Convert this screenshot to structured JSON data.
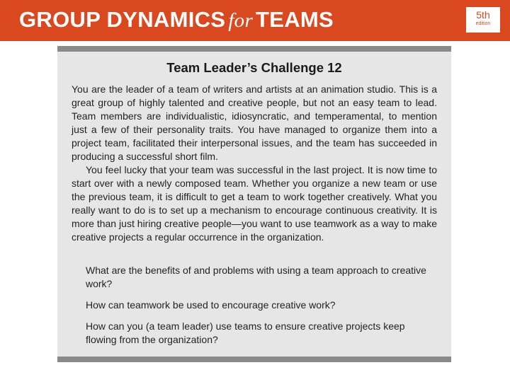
{
  "header": {
    "title_left": "GROUP DYNAMICS",
    "title_for": "for",
    "title_right": "TEAMS",
    "edition_number": "5th",
    "edition_word": "edition",
    "accent_color": "#d9481f"
  },
  "card": {
    "title": "Team Leader’s Challenge 12",
    "paragraphs": [
      "You are the leader of a team of writers and artists at an animation studio. This is a great group of highly talented and creative people, but not an easy team to lead. Team members are individualistic, idiosyncratic, and temperamental, to mention just a few of their personality traits. You have managed to orga­nize them into a project team, facilitated their interpersonal issues, and the team has succeeded in producing a successful short film.",
      "You feel lucky that your team was successful in the last project. It is now time to start over with a newly composed team. Whether you organize a new team or use the previous team, it is difficult to get a team to work together creatively. What you really want to do is to set up a mechanism to encourage continuous creativity. It is more than just hiring creative people—you want to use teamwork as a way to make creative projects a regular occurrence in the organization."
    ],
    "questions": [
      "What are the benefits of and problems with using a team approach to creative work?",
      "How can teamwork be used to encourage creative work?",
      "How can you (a team leader) use teams to ensure creative projects keep flowing from the organization?"
    ]
  }
}
